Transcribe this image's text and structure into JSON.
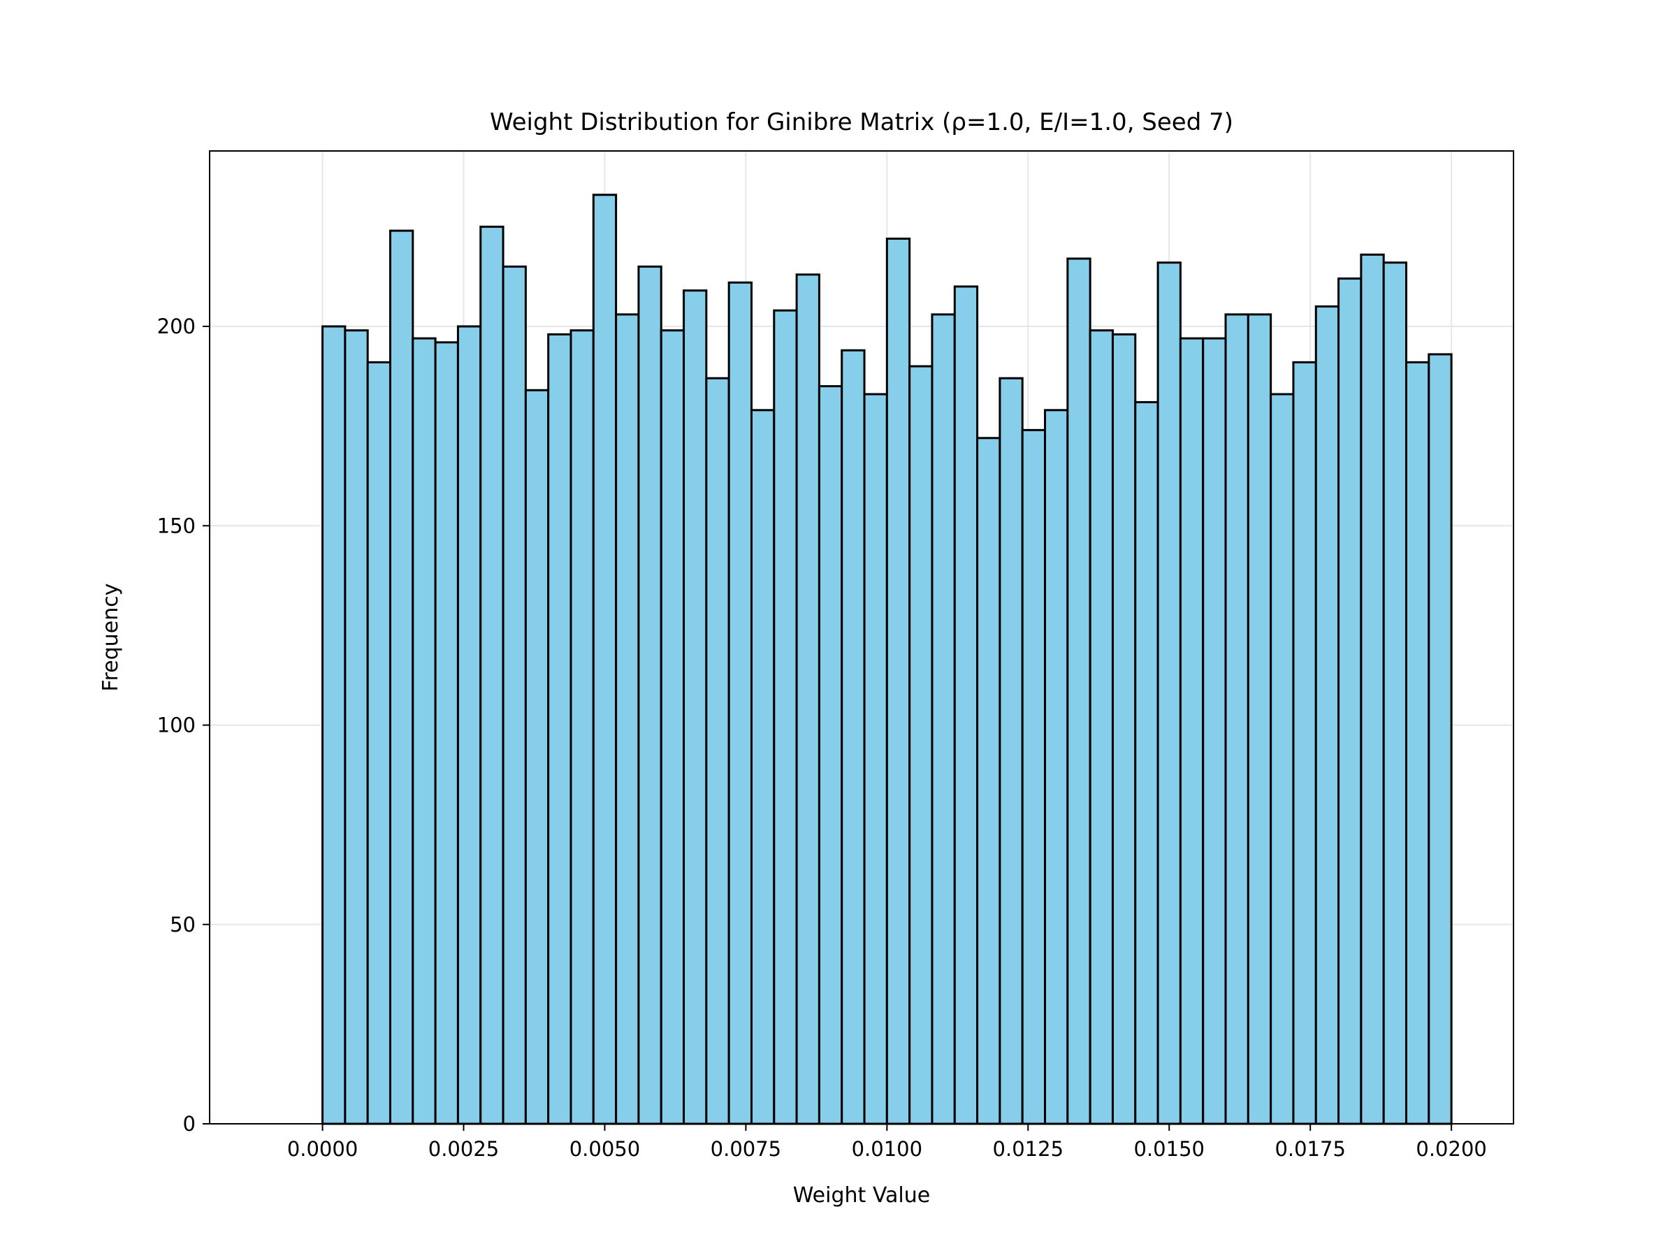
{
  "chart_data": {
    "type": "bar",
    "title": "Weight Distribution for Ginibre Matrix (ρ=1.0, E/I=1.0, Seed 7)",
    "xlabel": "Weight Value",
    "ylabel": "Frequency",
    "xlim": [
      -0.002,
      0.0211
    ],
    "ylim": [
      0,
      244
    ],
    "grid": true,
    "bar_color": "#87CEEB",
    "edge_color": "#000000",
    "bin_start": 0.0,
    "bin_width": 0.0004,
    "values": [
      200,
      199,
      191,
      224,
      197,
      196,
      200,
      225,
      215,
      184,
      198,
      199,
      233,
      203,
      215,
      199,
      209,
      187,
      211,
      179,
      204,
      213,
      185,
      194,
      183,
      222,
      190,
      203,
      210,
      172,
      187,
      174,
      179,
      217,
      199,
      198,
      181,
      216,
      197,
      197,
      203,
      203,
      183,
      191,
      205,
      212,
      218,
      216,
      191,
      193
    ],
    "x_ticks": [
      {
        "value": 0.0,
        "label": "0.0000"
      },
      {
        "value": 0.0025,
        "label": "0.0025"
      },
      {
        "value": 0.005,
        "label": "0.0050"
      },
      {
        "value": 0.0075,
        "label": "0.0075"
      },
      {
        "value": 0.01,
        "label": "0.0100"
      },
      {
        "value": 0.0125,
        "label": "0.0125"
      },
      {
        "value": 0.015,
        "label": "0.0150"
      },
      {
        "value": 0.0175,
        "label": "0.0175"
      },
      {
        "value": 0.02,
        "label": "0.0200"
      }
    ],
    "y_ticks": [
      {
        "value": 0,
        "label": "0"
      },
      {
        "value": 50,
        "label": "50"
      },
      {
        "value": 100,
        "label": "100"
      },
      {
        "value": 150,
        "label": "150"
      },
      {
        "value": 200,
        "label": "200"
      }
    ]
  }
}
